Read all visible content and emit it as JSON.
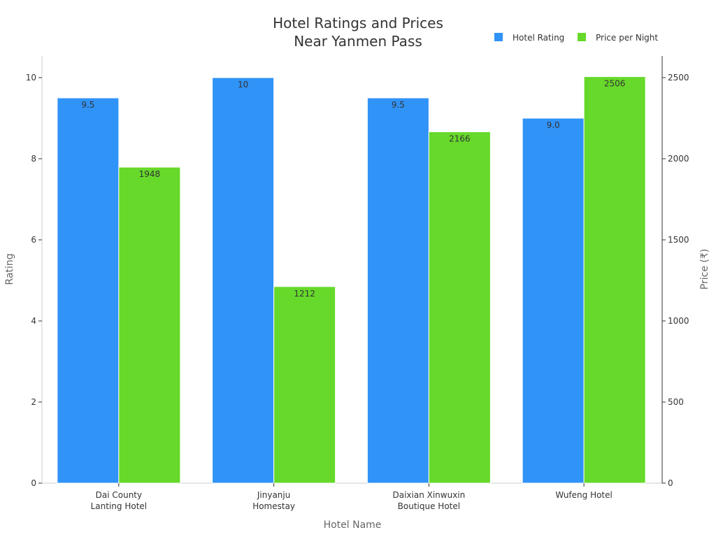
{
  "chart_data": {
    "type": "bar",
    "title_lines": [
      "Hotel Ratings and Prices",
      "Near Yanmen Pass"
    ],
    "categories": [
      [
        "Dai County",
        "Lanting Hotel"
      ],
      [
        "Jinyanju",
        "Homestay"
      ],
      [
        "Daixian Xinwuxin",
        "Boutique Hotel"
      ],
      [
        "Wufeng Hotel"
      ]
    ],
    "xlabel": "Hotel Name",
    "ylabel": "Rating",
    "y2label": "Price (₹)",
    "ylim": [
      0,
      10
    ],
    "y2lim": [
      0,
      2500
    ],
    "yticks": [
      "0",
      "2",
      "4",
      "6",
      "8",
      "10"
    ],
    "y2ticks": [
      "0",
      "500",
      "1000",
      "1500",
      "2000",
      "2500"
    ],
    "legend_position": "top-right",
    "grid": false,
    "series": [
      {
        "name": "Hotel Rating",
        "axis": "left",
        "color": "#3093f7",
        "values": [
          9.5,
          10,
          9.5,
          9.0
        ],
        "labels": [
          "9.5",
          "10",
          "9.5",
          "9.0"
        ]
      },
      {
        "name": "Price per Night",
        "axis": "right",
        "color": "#66d92a",
        "values": [
          1948,
          1212,
          2166,
          2506
        ],
        "labels": [
          "1948",
          "1212",
          "2166",
          "2506"
        ]
      }
    ]
  }
}
